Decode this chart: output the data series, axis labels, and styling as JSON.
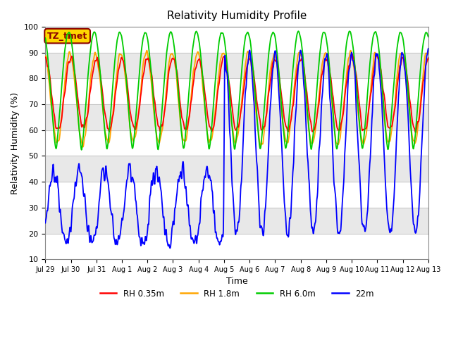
{
  "title": "Relativity Humidity Profile",
  "xlabel": "Time",
  "ylabel": "Relativity Humidity (%)",
  "ylim": [
    10,
    100
  ],
  "annotation": "TZ_tmet",
  "annotation_color": "#8B0000",
  "annotation_bg": "#FFD700",
  "legend": [
    {
      "label": "RH 0.35m",
      "color": "#FF0000"
    },
    {
      "label": "RH 1.8m",
      "color": "#FFA500"
    },
    {
      "label": "RH 6.0m",
      "color": "#00CC00"
    },
    {
      "label": "22m",
      "color": "#0000FF"
    }
  ],
  "x_tick_labels": [
    "Jul 29",
    "Jul 30",
    "Jul 31",
    "Aug 1",
    "Aug 2",
    "Aug 3",
    "Aug 4",
    "Aug 5",
    "Aug 6",
    "Aug 7",
    "Aug 8",
    "Aug 9",
    "Aug 10",
    "Aug 11",
    "Aug 12",
    "Aug 13"
  ],
  "x_tick_positions": [
    0,
    24,
    48,
    72,
    96,
    120,
    144,
    168,
    192,
    216,
    240,
    264,
    288,
    312,
    336,
    360
  ],
  "band_pairs": [
    [
      20,
      30
    ],
    [
      40,
      50
    ],
    [
      60,
      70
    ],
    [
      80,
      90
    ]
  ],
  "band_color": "#E8E8E8"
}
